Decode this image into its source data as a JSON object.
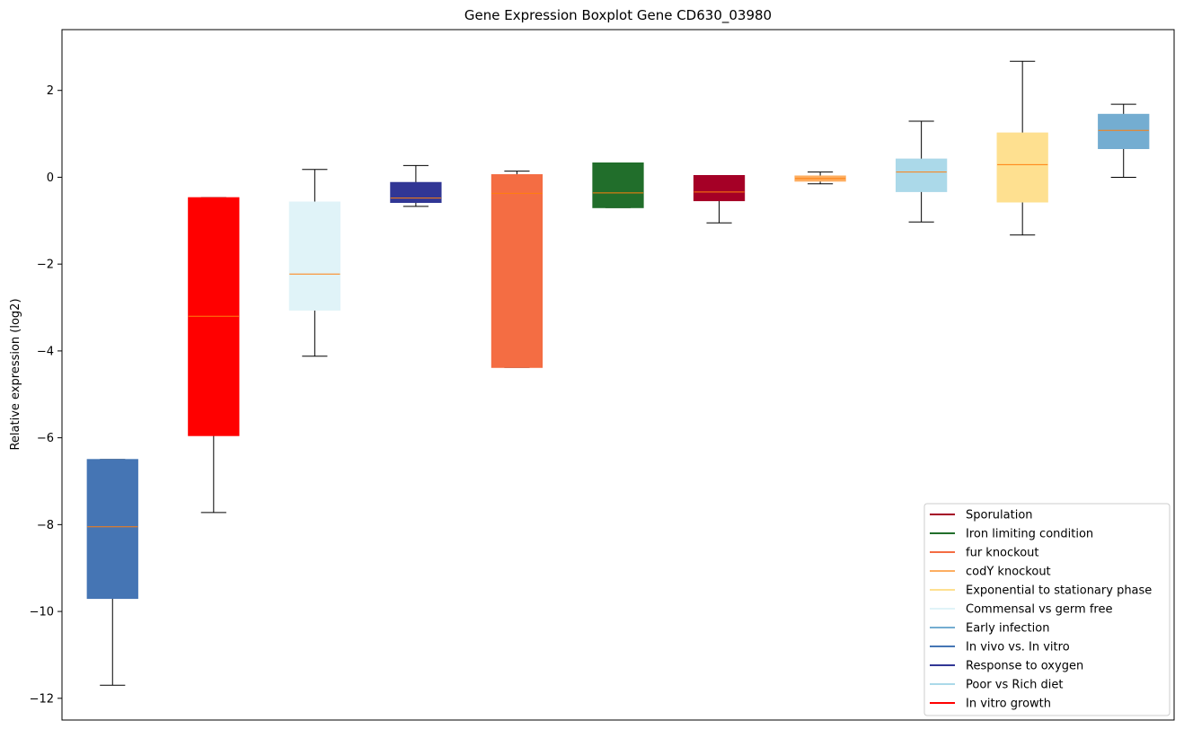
{
  "chart_data": {
    "type": "boxplot",
    "title": "Gene Expression Boxplot Gene CD630_03980",
    "xlabel": "",
    "ylabel": "Relative expression (log2)",
    "ylim": [
      -12.5,
      3.4
    ],
    "yticks": [
      -12,
      -10,
      -8,
      -6,
      -4,
      -2,
      0,
      2
    ],
    "ytick_labels": [
      "−12",
      "−10",
      "−8",
      "−6",
      "−4",
      "−2",
      "0",
      "2"
    ],
    "grid": false,
    "legend_position": "lower-right",
    "boxes": [
      {
        "color": "#4575b4",
        "whisker_low": -11.7,
        "q1": -9.7,
        "median": -8.05,
        "q3": -6.5,
        "whisker_high": -6.5
      },
      {
        "color": "#ff0000",
        "whisker_low": -7.72,
        "q1": -5.95,
        "median": -3.2,
        "q3": -0.47,
        "whisker_high": -0.47
      },
      {
        "color": "#e0f3f8",
        "whisker_low": -4.12,
        "q1": -3.06,
        "median": -2.23,
        "q3": -0.57,
        "whisker_high": 0.18
      },
      {
        "color": "#313695",
        "whisker_low": -0.67,
        "q1": -0.58,
        "median": -0.48,
        "q3": -0.12,
        "whisker_high": 0.27
      },
      {
        "color": "#f46d43",
        "whisker_low": -4.38,
        "q1": -4.38,
        "median": -0.37,
        "q3": 0.06,
        "whisker_high": 0.14
      },
      {
        "color": "#216e2b",
        "whisker_low": -0.7,
        "q1": -0.7,
        "median": -0.36,
        "q3": 0.33,
        "whisker_high": 0.33
      },
      {
        "color": "#a50026",
        "whisker_low": -1.05,
        "q1": -0.54,
        "median": -0.34,
        "q3": 0.04,
        "whisker_high": 0.04
      },
      {
        "color": "#fdae61",
        "whisker_low": -0.15,
        "q1": -0.09,
        "median": -0.03,
        "q3": 0.03,
        "whisker_high": 0.12
      },
      {
        "color": "#abd9e9",
        "whisker_low": -1.03,
        "q1": -0.33,
        "median": 0.12,
        "q3": 0.42,
        "whisker_high": 1.29
      },
      {
        "color": "#fee090",
        "whisker_low": -1.33,
        "q1": -0.57,
        "median": 0.29,
        "q3": 1.02,
        "whisker_high": 2.67
      },
      {
        "color": "#74add1",
        "whisker_low": 0.0,
        "q1": 0.66,
        "median": 1.08,
        "q3": 1.45,
        "whisker_high": 1.68
      }
    ],
    "median_color": "#ff7f0e",
    "legend": [
      {
        "label": "Sporulation",
        "color": "#a50026"
      },
      {
        "label": "Iron limiting condition",
        "color": "#216e2b"
      },
      {
        "label": "fur knockout",
        "color": "#f46d43"
      },
      {
        "label": "codY knockout",
        "color": "#fdae61"
      },
      {
        "label": "Exponential to stationary phase",
        "color": "#fee090"
      },
      {
        "label": "Commensal vs germ free",
        "color": "#e0f3f8"
      },
      {
        "label": "Early infection",
        "color": "#74add1"
      },
      {
        "label": "In vivo vs. In vitro",
        "color": "#4575b4"
      },
      {
        "label": "Response to oxygen",
        "color": "#313695"
      },
      {
        "label": "Poor vs Rich diet",
        "color": "#abd9e9"
      },
      {
        "label": "In vitro growth",
        "color": "#ff0000"
      }
    ]
  }
}
